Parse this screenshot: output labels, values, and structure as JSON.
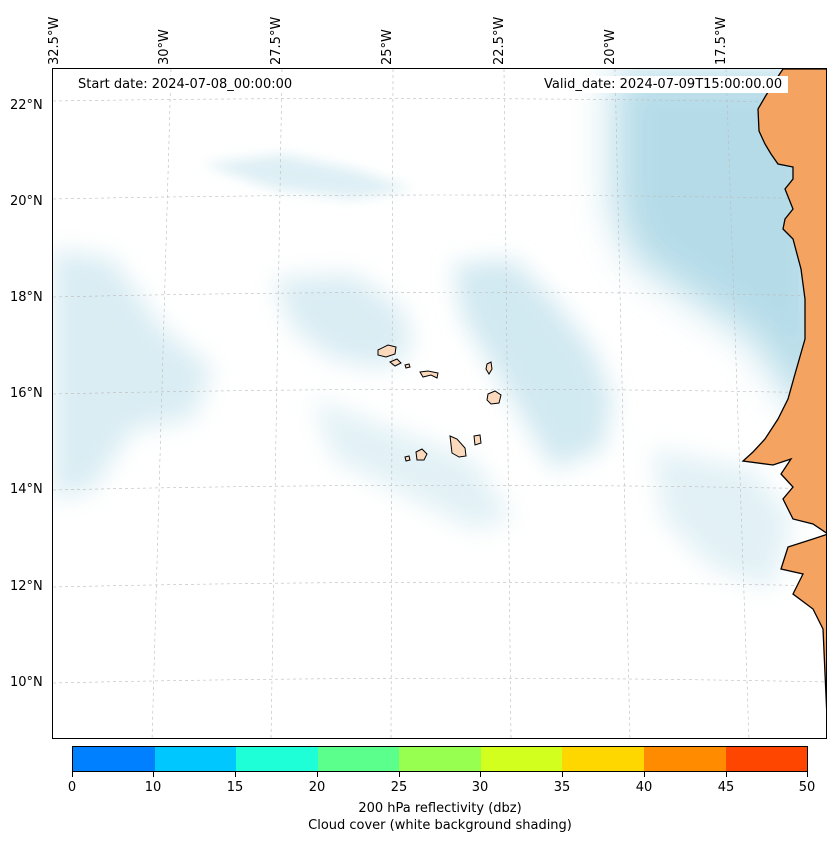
{
  "map": {
    "start_label": "Start date: 2024-07-08_00:00:00",
    "valid_label": "Valid_date: 2024-07-09T15:00:00.00",
    "lon_labels": [
      "32.5°W",
      "30°W",
      "27.5°W",
      "25°W",
      "22.5°W",
      "20°W",
      "17.5°W"
    ],
    "lat_labels": [
      "22°N",
      "20°N",
      "18°N",
      "16°N",
      "14°N",
      "12°N",
      "10°N"
    ],
    "colors": {
      "land": "#f4a460",
      "island_land": "#fad9bd",
      "cloud": "#add8e6",
      "gridline": "#bbbbbb",
      "coast": "#000000"
    }
  },
  "colorbar": {
    "ticks": [
      "0",
      "10",
      "15",
      "20",
      "25",
      "30",
      "35",
      "40",
      "45",
      "50"
    ],
    "colors": [
      "#0080ff",
      "#00c8ff",
      "#1effd7",
      "#5aff8c",
      "#96ff50",
      "#d2ff1e",
      "#ffd700",
      "#ff8c00",
      "#ff4600"
    ],
    "label_line1": "200 hPa reflectivity (dbz)",
    "label_line2": "Cloud cover (white background shading)"
  }
}
